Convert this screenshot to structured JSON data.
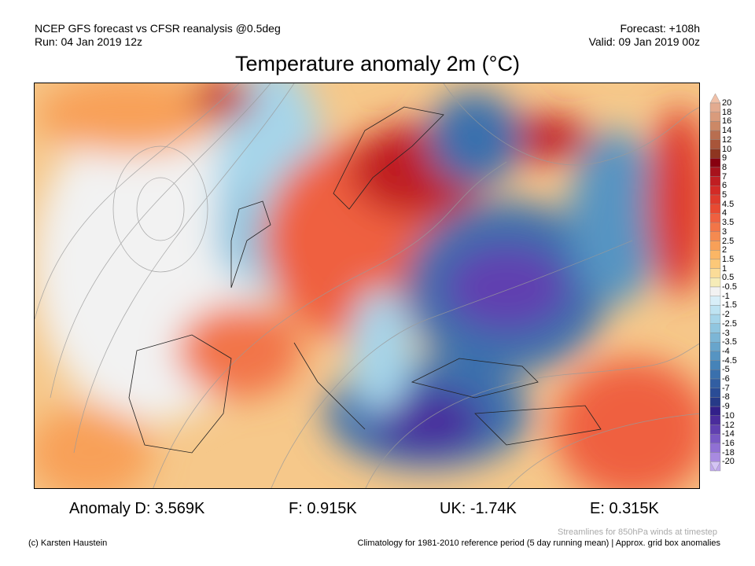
{
  "header": {
    "model_line": "NCEP GFS forecast vs CFSR reanalysis @0.5deg",
    "run_line": "Run: 04 Jan 2019 12z",
    "forecast_line": "Forecast: +108h",
    "valid_line": "Valid: 09 Jan 2019 00z"
  },
  "title": "Temperature anomaly 2m (°C)",
  "stats": [
    {
      "label": "Anomaly D: 3.569K"
    },
    {
      "label": "F: 0.915K"
    },
    {
      "label": "UK: -1.74K"
    },
    {
      "label": "E: 0.315K"
    }
  ],
  "footer": {
    "credit": "(c) Karsten Haustein",
    "streamlines_note": "Streamlines for 850hPa winds at timestep",
    "climatology_note": "Climatology for 1981-2010 reference period (5 day running mean) | Approx. grid box anomalies"
  },
  "colorbar": {
    "labels": [
      "20",
      "18",
      "16",
      "14",
      "12",
      "10",
      "9",
      "8",
      "7",
      "6",
      "5",
      "4.5",
      "4",
      "3.5",
      "3",
      "2.5",
      "2",
      "1.5",
      "1",
      "0.5",
      "-0.5",
      "-1",
      "-1.5",
      "-2",
      "-2.5",
      "-3",
      "-3.5",
      "-4",
      "-4.5",
      "-5",
      "-6",
      "-7",
      "-8",
      "-9",
      "-10",
      "-12",
      "-14",
      "-16",
      "-18",
      "-20"
    ],
    "colors": [
      "#f0c0a8",
      "#e3ab90",
      "#d99b7c",
      "#cc8866",
      "#b86e50",
      "#a8553a",
      "#8e3520",
      "#880010",
      "#a8121c",
      "#c01e22",
      "#d32a26",
      "#de3a2c",
      "#e84a32",
      "#ef6040",
      "#f27548",
      "#f58a50",
      "#f8a058",
      "#fbb665",
      "#fcc878",
      "#fbdc98",
      "#f6ecb8",
      "#f2f2f2",
      "#d8eef8",
      "#bee3f2",
      "#a6d5ea",
      "#90c6e0",
      "#7cb6d6",
      "#68a5cc",
      "#5694c2",
      "#4683b8",
      "#3a70ad",
      "#325ea2",
      "#2a4c96",
      "#263a88",
      "#32208a",
      "#4a2c9c",
      "#6040b0",
      "#7858c4",
      "#9070d4",
      "#a88ae0",
      "#c0a8ec",
      "#d4c4f4"
    ]
  }
}
